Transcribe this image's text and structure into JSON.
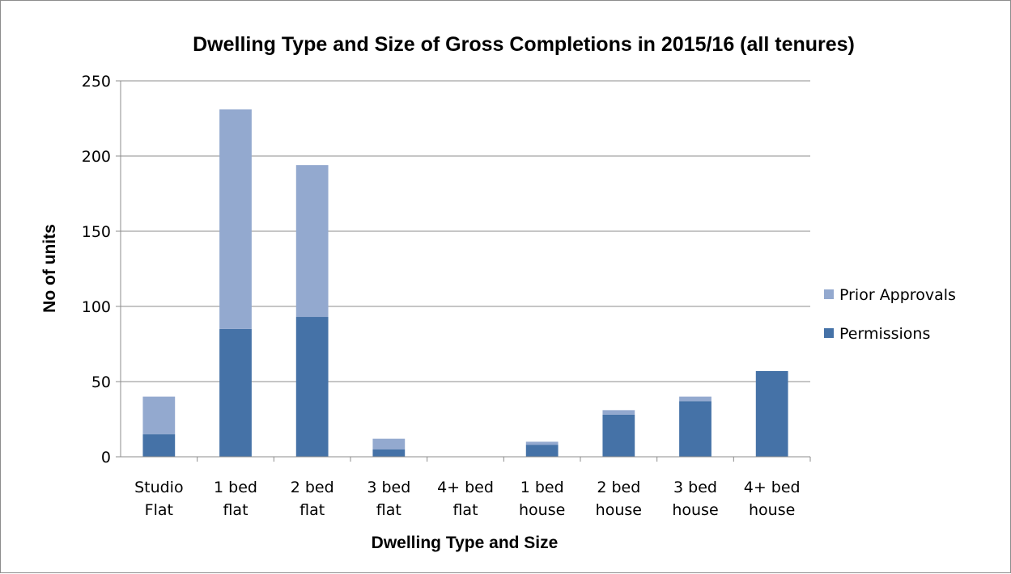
{
  "chart_data": {
    "type": "bar",
    "stacked": true,
    "title": "Dwelling Type and Size of Gross Completions in 2015/16 (all tenures)",
    "xlabel": "Dwelling  Type and Size",
    "ylabel": "No of units",
    "ylim": [
      0,
      250
    ],
    "yticks": [
      0,
      50,
      100,
      150,
      200,
      250
    ],
    "grid": true,
    "legend_position": "right",
    "categories": [
      [
        "Studio",
        "Flat"
      ],
      [
        "1 bed",
        "flat"
      ],
      [
        "2 bed",
        "flat"
      ],
      [
        "3 bed",
        "flat"
      ],
      [
        "4+ bed",
        "flat"
      ],
      [
        "1 bed",
        "house"
      ],
      [
        "2 bed",
        "house"
      ],
      [
        "3 bed",
        "house"
      ],
      [
        "4+ bed",
        "house"
      ]
    ],
    "series": [
      {
        "name": "Permissions",
        "color": "#4572a7",
        "values": [
          15,
          85,
          93,
          5,
          0,
          8,
          28,
          37,
          57
        ]
      },
      {
        "name": "Prior Approvals",
        "color": "#93a9cf",
        "values": [
          25,
          146,
          101,
          7,
          0,
          2,
          3,
          3,
          0
        ]
      }
    ],
    "legend_order": [
      "Prior Approvals",
      "Permissions"
    ]
  }
}
